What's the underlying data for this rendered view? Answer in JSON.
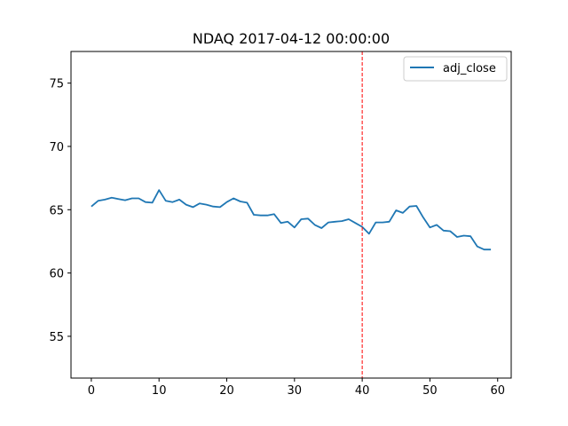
{
  "chart_data": {
    "type": "line",
    "title": "NDAQ 2017-04-12 00:00:00",
    "xlabel": "",
    "ylabel": "",
    "xlim": [
      -3,
      62
    ],
    "ylim": [
      51.7,
      77.5
    ],
    "xticks": [
      0,
      10,
      20,
      30,
      40,
      50,
      60
    ],
    "yticks": [
      55,
      60,
      65,
      70,
      75
    ],
    "grid": false,
    "legend_position": "top-right",
    "series": [
      {
        "name": "adj_close",
        "color": "#1f77b4",
        "x": [
          0,
          1,
          2,
          3,
          4,
          5,
          6,
          7,
          8,
          9,
          10,
          11,
          12,
          13,
          14,
          15,
          16,
          17,
          18,
          19,
          20,
          21,
          22,
          23,
          24,
          25,
          26,
          27,
          28,
          29,
          30,
          31,
          32,
          33,
          34,
          35,
          36,
          37,
          38,
          39,
          40,
          41,
          42,
          43,
          44,
          45,
          46,
          47,
          48,
          49,
          50,
          51,
          52,
          53,
          54,
          55,
          56,
          57,
          58,
          59
        ],
        "values": [
          65.25,
          65.7,
          65.8,
          65.95,
          65.85,
          65.75,
          65.9,
          65.9,
          65.6,
          65.55,
          66.55,
          65.7,
          65.6,
          65.8,
          65.4,
          65.2,
          65.5,
          65.4,
          65.25,
          65.2,
          65.6,
          65.9,
          65.65,
          65.55,
          64.6,
          64.55,
          64.55,
          64.65,
          63.95,
          64.05,
          63.6,
          64.25,
          64.3,
          63.8,
          63.55,
          64.0,
          64.05,
          64.1,
          64.25,
          63.95,
          63.65,
          63.1,
          64.0,
          64.0,
          64.05,
          64.95,
          64.75,
          65.25,
          65.3,
          64.4,
          63.6,
          63.8,
          63.35,
          63.3,
          62.85,
          62.95,
          62.9,
          62.1,
          61.85,
          61.85
        ]
      }
    ],
    "vline": {
      "x": 40,
      "color": "#ff0000",
      "style": "dashed"
    }
  }
}
